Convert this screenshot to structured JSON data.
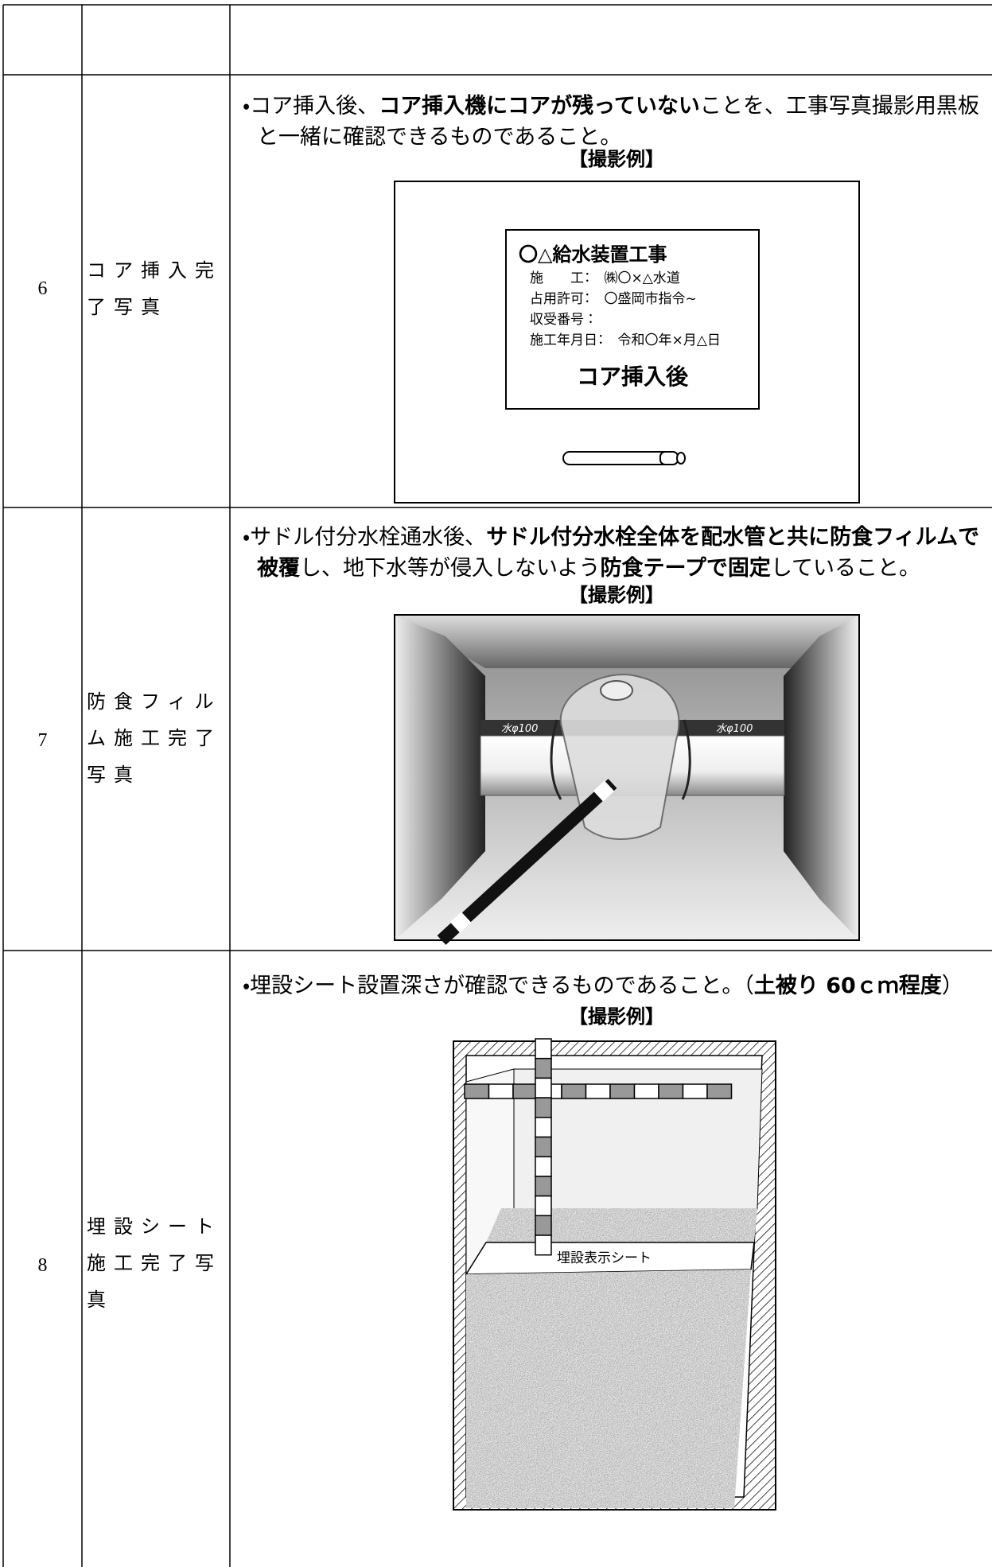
{
  "table": {
    "rows": [
      {
        "number": 6,
        "label": "コア挿入完了写真",
        "description": [
          {
            "text": "・コア挿入後、",
            "bold": false
          },
          {
            "text": "コア挿入機にコアが残っていない",
            "bold": true
          },
          {
            "text": "ことを、工事写真撮影用黒板と一緒に確認できるものであること。",
            "bold": false
          }
        ],
        "caption": "【撮影例】",
        "illustration": {
          "board_title": "〇△給水装置工事",
          "board_lines": [
            "施　　工：　㈱〇×△水道",
            "占用許可：　〇盛岡市指令~",
            "収受番号：",
            "施工年月日：　令和〇年×月△日"
          ],
          "board_subject": "コア挿入後"
        }
      },
      {
        "number": 7,
        "label": "防食フィルム施工完了写真",
        "description": [
          {
            "text": "・サドル付分水栓通水後、",
            "bold": false
          },
          {
            "text": "サドル付分水栓全体を配水管と共に防食フィルムで被覆",
            "bold": true
          },
          {
            "text": "し、地下水等が侵入しないよう",
            "bold": false
          },
          {
            "text": "防食テープで固定",
            "bold": true
          },
          {
            "text": "していること。",
            "bold": false
          }
        ],
        "caption": "【撮影例】",
        "illustration": {
          "pipe_labels": [
            "水φ100",
            "水φ100"
          ]
        }
      },
      {
        "number": 8,
        "label": "埋設シート施工完了写真",
        "description": [
          {
            "text": "・埋設シート設置深さが確認できるものであること。（",
            "bold": false
          },
          {
            "text": "土被り 60ｃｍ程度",
            "bold": true
          },
          {
            "text": "）",
            "bold": false
          }
        ],
        "caption": "【撮影例】",
        "illustration": {
          "sheet_label": "埋設表示シート"
        }
      }
    ]
  }
}
